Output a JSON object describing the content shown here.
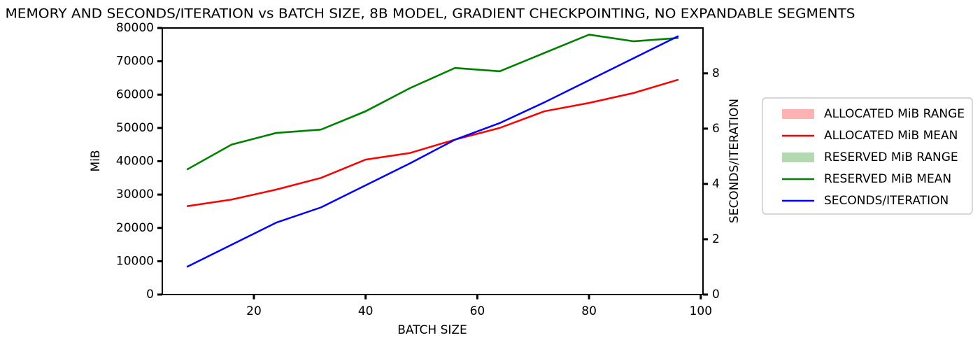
{
  "chart_data": {
    "type": "line",
    "title": "MEMORY AND SECONDS/ITERATION vs BATCH SIZE, 8B MODEL, GRADIENT CHECKPOINTING, NO EXPANDABLE SEGMENTS",
    "xlabel": "BATCH SIZE",
    "ylabel": "MiB",
    "y2label": "SECONDS/ITERATION",
    "x": [
      8,
      16,
      24,
      32,
      40,
      48,
      56,
      64,
      72,
      80,
      88,
      96
    ],
    "xlim": [
      3.6,
      100.4
    ],
    "xticks": [
      20,
      40,
      60,
      80,
      100
    ],
    "ylim": [
      0,
      80000
    ],
    "yticks": [
      0,
      10000,
      20000,
      30000,
      40000,
      50000,
      60000,
      70000,
      80000
    ],
    "y2lim": [
      0,
      9.64
    ],
    "y2ticks": [
      0,
      2,
      4,
      6,
      8
    ],
    "legend": "outside right",
    "series": [
      {
        "name": "ALLOCATED MiB RANGE",
        "color": "#ff0000",
        "style": "band",
        "low": [
          26300,
          28300,
          31300,
          34800,
          40300,
          42300,
          46300,
          49800,
          54800,
          57300,
          60300,
          64300
        ],
        "high": [
          26700,
          28700,
          31700,
          35200,
          40700,
          42700,
          46700,
          50200,
          55200,
          57700,
          60700,
          64700
        ]
      },
      {
        "name": "ALLOCATED MiB MEAN",
        "color": "#ff0000",
        "style": "line",
        "values": [
          26500,
          28500,
          31500,
          35000,
          40500,
          42500,
          46500,
          50000,
          55000,
          57500,
          60500,
          64500
        ]
      },
      {
        "name": "RESERVED MiB RANGE",
        "color": "#008000",
        "style": "band",
        "low": [
          37200,
          44700,
          48200,
          49200,
          54600,
          61700,
          67700,
          66700,
          72200,
          77700,
          75700,
          76700
        ],
        "high": [
          37800,
          45300,
          48800,
          49800,
          55400,
          62300,
          68300,
          67300,
          72800,
          78300,
          76300,
          77300
        ]
      },
      {
        "name": "RESERVED MiB MEAN",
        "color": "#008000",
        "style": "line",
        "values": [
          37500,
          45000,
          48500,
          49500,
          55000,
          62000,
          68000,
          67000,
          72500,
          78000,
          76000,
          77000
        ]
      },
      {
        "name": "SECONDS/ITERATION",
        "color": "#0000ff",
        "style": "line",
        "axis": "y2",
        "values": [
          1.0,
          1.8,
          2.6,
          3.15,
          3.95,
          4.75,
          5.6,
          6.2,
          6.95,
          7.75,
          8.55,
          9.35
        ]
      }
    ]
  }
}
